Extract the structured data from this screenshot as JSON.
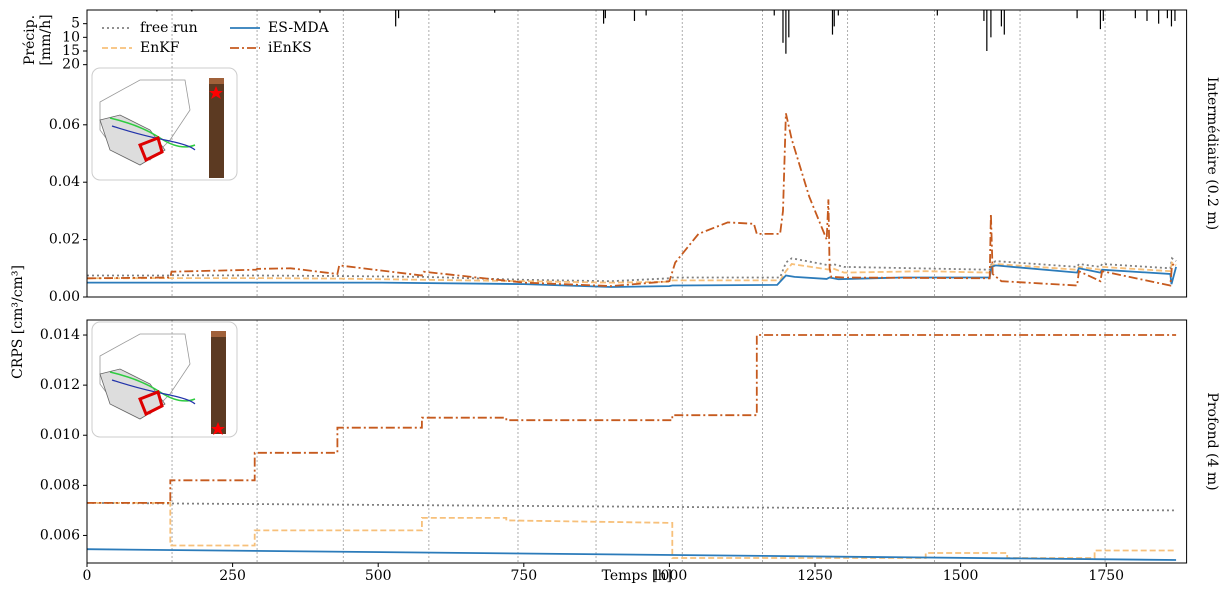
{
  "chart_data": [
    {
      "type": "bar",
      "y_label": [
        "Précip.",
        "[mm/h]"
      ],
      "color": "#000000",
      "y_inverted": true,
      "xlim": [
        0,
        1888
      ],
      "ylim": [
        0,
        105
      ],
      "yticks": [
        5,
        10,
        15,
        20
      ],
      "x": [
        120,
        180,
        400,
        530,
        535,
        700,
        887,
        890,
        940,
        960,
        1180,
        1195,
        1200,
        1205,
        1280,
        1283,
        1290,
        1460,
        1540,
        1545,
        1552,
        1570,
        1575,
        1700,
        1740,
        1745,
        1800,
        1820,
        1840,
        1855,
        1862,
        1868
      ],
      "values": [
        0.5,
        0.5,
        1,
        6,
        3,
        1,
        5,
        3,
        4,
        2,
        2,
        12,
        16,
        10,
        9,
        6,
        2,
        2,
        4,
        15,
        10,
        6,
        9,
        3,
        7,
        4,
        3,
        4,
        5,
        3,
        6,
        4
      ]
    },
    {
      "type": "line",
      "side_label": "Intermédiaire (0.2 m)",
      "y_label": "CRPS [cm³/cm³]",
      "legend_loc": "upper left",
      "legend_ncol": 2,
      "xlim": [
        0,
        1888
      ],
      "ylim": [
        0,
        0.1
      ],
      "yticks": [
        {
          "value": 0,
          "label": "0.00"
        },
        {
          "value": 0.02,
          "label": "0.02"
        },
        {
          "value": 0.04,
          "label": "0.04"
        },
        {
          "value": 0.06,
          "label": "0.06"
        }
      ],
      "vlines": [
        146,
        292,
        440,
        587,
        740,
        874,
        1022,
        1160,
        1306,
        1455,
        1602,
        1748
      ],
      "series": [
        {
          "name": "free run",
          "color": "#808080",
          "style": "dotted",
          "x": [
            0,
            140,
            145,
            290,
            430,
            580,
            750,
            900,
            1000,
            1005,
            1190,
            1200,
            1210,
            1275,
            1280,
            1300,
            1550,
            1553,
            1560,
            1700,
            1703,
            1740,
            1743,
            1860,
            1863,
            1870
          ],
          "values": [
            0.0075,
            0.0075,
            0.0076,
            0.0075,
            0.0073,
            0.007,
            0.006,
            0.0055,
            0.0065,
            0.0068,
            0.0068,
            0.012,
            0.0135,
            0.011,
            0.0115,
            0.0105,
            0.0095,
            0.0115,
            0.0125,
            0.0105,
            0.0115,
            0.0105,
            0.0115,
            0.01,
            0.0135,
            0.0125
          ]
        },
        {
          "name": "EnKF",
          "color": "#f7c07a",
          "style": "dashed",
          "x": [
            0,
            140,
            290,
            430,
            580,
            750,
            900,
            1000,
            1005,
            1190,
            1200,
            1210,
            1275,
            1280,
            1300,
            1440,
            1550,
            1553,
            1560,
            1700,
            1703,
            1740,
            1743,
            1860,
            1863,
            1870
          ],
          "values": [
            0.0065,
            0.0066,
            0.0066,
            0.0064,
            0.006,
            0.0055,
            0.005,
            0.0053,
            0.0058,
            0.0058,
            0.009,
            0.0115,
            0.0095,
            0.01,
            0.0085,
            0.009,
            0.0085,
            0.011,
            0.0115,
            0.0095,
            0.0105,
            0.0095,
            0.0105,
            0.009,
            0.012,
            0.011
          ]
        },
        {
          "name": "ES-MDA",
          "color": "#2b7bba",
          "style": "solid",
          "x": [
            0,
            200,
            500,
            750,
            900,
            1000,
            1005,
            1185,
            1200,
            1215,
            1270,
            1275,
            1290,
            1400,
            1550,
            1553,
            1560,
            1700,
            1703,
            1740,
            1743,
            1860,
            1862,
            1870
          ],
          "values": [
            0.005,
            0.005,
            0.005,
            0.0045,
            0.0035,
            0.0038,
            0.004,
            0.0042,
            0.0075,
            0.007,
            0.0063,
            0.0068,
            0.0062,
            0.0068,
            0.0068,
            0.0105,
            0.011,
            0.0085,
            0.01,
            0.0085,
            0.0095,
            0.008,
            0.0045,
            0.0105
          ]
        },
        {
          "name": "iEnKS",
          "color": "#c65a1e",
          "style": "dashdot",
          "x": [
            0,
            143,
            145,
            290,
            292,
            350,
            430,
            433,
            575,
            578,
            750,
            900,
            1000,
            1010,
            1050,
            1100,
            1145,
            1150,
            1190,
            1195,
            1200,
            1210,
            1240,
            1270,
            1273,
            1275,
            1278,
            1300,
            1550,
            1552,
            1555,
            1570,
            1700,
            1703,
            1740,
            1743,
            1860,
            1863,
            1870
          ],
          "values": [
            0.0065,
            0.0068,
            0.0088,
            0.0095,
            0.0098,
            0.01,
            0.008,
            0.011,
            0.0075,
            0.0088,
            0.005,
            0.0038,
            0.0055,
            0.012,
            0.022,
            0.026,
            0.0255,
            0.022,
            0.022,
            0.03,
            0.064,
            0.055,
            0.035,
            0.02,
            0.034,
            0.01,
            0.007,
            0.0068,
            0.0065,
            0.029,
            0.008,
            0.0055,
            0.004,
            0.009,
            0.0055,
            0.009,
            0.004,
            0.011,
            0.012
          ]
        }
      ]
    },
    {
      "type": "line",
      "side_label": "Profond (4 m)",
      "x_label": "Temps [h]",
      "xlim": [
        0,
        1888
      ],
      "ylim": [
        0.0049,
        0.0146
      ],
      "xticks": [
        0,
        250,
        500,
        750,
        1000,
        1250,
        1500,
        1750
      ],
      "yticks": [
        0.006,
        0.008,
        {
          "value": 0.01,
          "label": "0.010"
        },
        0.012,
        0.014
      ],
      "vlines": [
        146,
        292,
        440,
        587,
        740,
        874,
        1022,
        1160,
        1306,
        1455,
        1602,
        1748
      ],
      "series": [
        {
          "color": "#808080",
          "style": "dotted",
          "x": [
            0,
            1870
          ],
          "values": [
            0.0073,
            0.007
          ]
        },
        {
          "color": "#f7c07a",
          "style": "dashed",
          "x": [
            0,
            143,
            143,
            288,
            288,
            575,
            575,
            720,
            720,
            1005,
            1005,
            1440,
            1440,
            1580,
            1580,
            1730,
            1730,
            1870
          ],
          "values": [
            0.0073,
            0.0073,
            0.0056,
            0.0056,
            0.0062,
            0.0062,
            0.0067,
            0.0067,
            0.0066,
            0.0065,
            0.0051,
            0.0051,
            0.0053,
            0.0053,
            0.0051,
            0.0051,
            0.0054,
            0.0054
          ]
        },
        {
          "color": "#2b7bba",
          "style": "solid",
          "x": [
            0,
            1870
          ],
          "values": [
            0.00545,
            0.00502
          ]
        },
        {
          "color": "#c65a1e",
          "style": "dashdot",
          "x": [
            0,
            143,
            143,
            288,
            288,
            430,
            430,
            575,
            575,
            720,
            720,
            1005,
            1005,
            1150,
            1150,
            1870
          ],
          "values": [
            0.0073,
            0.0073,
            0.0082,
            0.0082,
            0.0093,
            0.0093,
            0.0103,
            0.0103,
            0.0107,
            0.0107,
            0.0106,
            0.0106,
            0.0108,
            0.0108,
            0.014,
            0.014
          ]
        }
      ]
    }
  ]
}
